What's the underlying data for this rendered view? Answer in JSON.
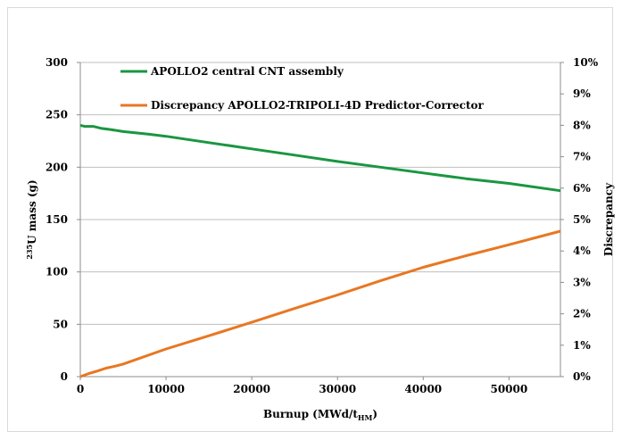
{
  "colors": {
    "green": "#1a9641",
    "orange": "#e87722",
    "grid": "#bfbfbf",
    "axis": "#8c8c8c"
  },
  "chart_data": {
    "type": "line",
    "x_axis": {
      "label_main": "Burnup (MWd/t",
      "label_sub": "HM",
      "label_close": ")",
      "range": [
        0,
        56000
      ],
      "ticks": [
        "0",
        "10000",
        "20000",
        "30000",
        "40000",
        "50000"
      ],
      "tick_values": [
        0,
        10000,
        20000,
        30000,
        40000,
        50000
      ]
    },
    "y_left": {
      "label_sup": "235",
      "label_main": "U mass (g)",
      "range": [
        0,
        300
      ],
      "ticks": [
        "0",
        "50",
        "100",
        "150",
        "200",
        "250",
        "300"
      ],
      "tick_values": [
        0,
        50,
        100,
        150,
        200,
        250,
        300
      ]
    },
    "y_right": {
      "label": "Discrepancy",
      "range": [
        0,
        10
      ],
      "ticks": [
        "0%",
        "1%",
        "2%",
        "3%",
        "4%",
        "5%",
        "6%",
        "7%",
        "8%",
        "9%",
        "10%"
      ],
      "tick_values": [
        0,
        1,
        2,
        3,
        4,
        5,
        6,
        7,
        8,
        9,
        10
      ]
    },
    "grid": true,
    "legend_position": "top",
    "series": [
      {
        "name": "APOLLO2 central CNT assembly",
        "axis": "left",
        "color_key": "green",
        "points": [
          [
            0,
            240
          ],
          [
            500,
            239
          ],
          [
            1500,
            239
          ],
          [
            2500,
            237
          ],
          [
            3500,
            236
          ],
          [
            5000,
            234
          ],
          [
            8000,
            231.5
          ],
          [
            10000,
            229.5
          ],
          [
            15000,
            223.5
          ],
          [
            20000,
            217.5
          ],
          [
            25000,
            211.5
          ],
          [
            30000,
            205.5
          ],
          [
            35000,
            200
          ],
          [
            40000,
            194.5
          ],
          [
            45000,
            189
          ],
          [
            50000,
            184.5
          ],
          [
            56000,
            177.5
          ]
        ]
      },
      {
        "name": "Discrepancy APOLLO2-TRIPOLI-4D Predictor-Corrector",
        "axis": "right",
        "color_key": "orange",
        "points": [
          [
            0,
            0.0
          ],
          [
            1000,
            0.1
          ],
          [
            2000,
            0.18
          ],
          [
            3000,
            0.27
          ],
          [
            4000,
            0.33
          ],
          [
            5000,
            0.4
          ],
          [
            10000,
            0.88
          ],
          [
            15000,
            1.3
          ],
          [
            20000,
            1.73
          ],
          [
            25000,
            2.17
          ],
          [
            30000,
            2.6
          ],
          [
            35000,
            3.05
          ],
          [
            40000,
            3.48
          ],
          [
            45000,
            3.85
          ],
          [
            50000,
            4.2
          ],
          [
            56000,
            4.63
          ]
        ]
      }
    ]
  }
}
